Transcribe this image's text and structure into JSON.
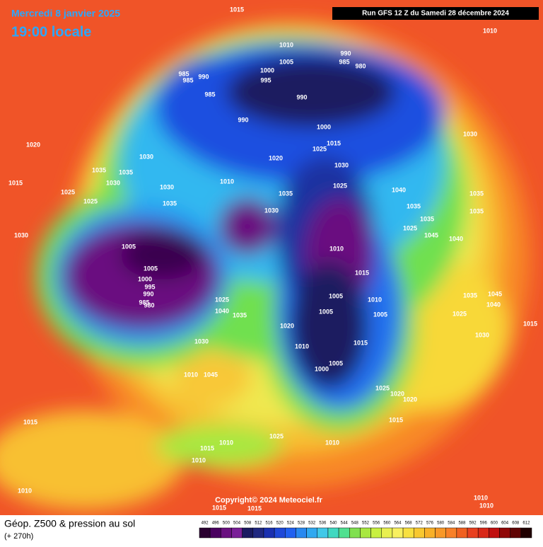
{
  "header": {
    "date": "Mercredi 8 janvier 2025",
    "time": "19:00 locale",
    "run": "Run GFS 12 Z du Samedi 28 décembre 2024"
  },
  "map": {
    "copyright": "Copyright© 2024 Meteociel.fr",
    "pressure_labels": [
      1015,
      1010,
      1010,
      990,
      985,
      980,
      1005,
      1000,
      985,
      990,
      985,
      995,
      985,
      990,
      990,
      1000,
      1030,
      1020,
      1015,
      1025,
      1030,
      1020,
      1030,
      1035,
      1035,
      1015,
      1030,
      1010,
      1025,
      1040,
      1030,
      1025,
      1035,
      1035,
      1025,
      1035,
      1035,
      1035,
      1030,
      1035,
      1025,
      1045,
      1030,
      1040,
      1005,
      1010,
      1005,
      1015,
      1000,
      995,
      990,
      985,
      980,
      1005,
      1025,
      1010,
      1035,
      1045,
      1040,
      1040,
      1005,
      1005,
      1035,
      1025,
      1020,
      1015,
      1030,
      1015,
      1030,
      1010,
      1005,
      1000,
      1045,
      1010,
      1025,
      1020,
      1020,
      1015,
      1015,
      1025,
      1010,
      1010,
      1015,
      1010,
      1010,
      1010,
      1010,
      1015,
      1015
    ]
  },
  "footer": {
    "title": "Géop. Z500 & pression au sol",
    "lead": "(+ 270h)",
    "scale": [
      492,
      496,
      500,
      504,
      508,
      512,
      516,
      520,
      524,
      528,
      532,
      536,
      540,
      544,
      548,
      552,
      556,
      560,
      564,
      568,
      572,
      576,
      580,
      584,
      588,
      592,
      596,
      600,
      604,
      608,
      612
    ],
    "scale_colors": [
      "#2a0030",
      "#4a0060",
      "#6a1080",
      "#7a2098",
      "#1a1a60",
      "#202880",
      "#1a30b0",
      "#1e48d8",
      "#2060f0",
      "#2888f0",
      "#30a8f0",
      "#40c8e8",
      "#40d8c0",
      "#50e090",
      "#80e050",
      "#a8e840",
      "#c8f040",
      "#e8f050",
      "#f8f060",
      "#f8e040",
      "#f8c830",
      "#f8b028",
      "#f89828",
      "#f88028",
      "#f06020",
      "#e84020",
      "#d82818",
      "#c01010",
      "#900808",
      "#600404",
      "#200000"
    ]
  }
}
